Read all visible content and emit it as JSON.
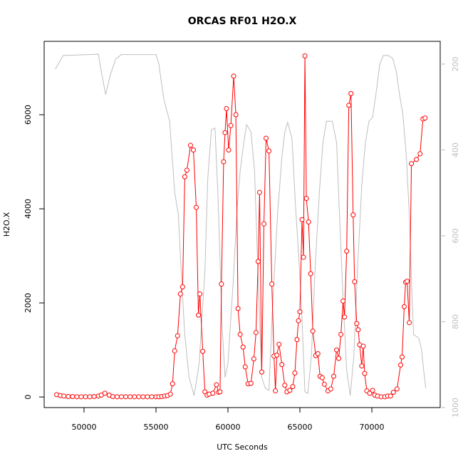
{
  "chart_data": {
    "type": "line",
    "title": "ORCAS RF01 H2O.X",
    "xlabel": "UTC Seconds",
    "ylabel": "H2O.X",
    "xlim": [
      47230,
      74750
    ],
    "xticks": [
      50000,
      55000,
      60000,
      65000,
      70000
    ],
    "ylim": [
      -225,
      7560
    ],
    "yticks": [
      0,
      2000,
      4000,
      6000
    ],
    "y2lim": [
      1000,
      147
    ],
    "y2ticks": [
      200,
      400,
      600,
      800,
      1000
    ],
    "series": [
      {
        "color": "#bebebe",
        "axis": "y2",
        "marker": "none",
        "x": [
          48000,
          48550,
          51000,
          51200,
          51500,
          51830,
          52200,
          52600,
          55000,
          55200,
          55550,
          55950,
          56300,
          56550,
          56800,
          57000,
          57300,
          57650,
          58000,
          58400,
          58600,
          58850,
          59100,
          59300,
          59600,
          59800,
          60000,
          60350,
          60650,
          60850,
          61100,
          61300,
          61600,
          61850,
          62100,
          62350,
          62600,
          62850,
          63100,
          63450,
          63750,
          63950,
          64150,
          64450,
          64700,
          64950,
          65150,
          65350,
          65550,
          65800,
          66050,
          66350,
          66600,
          66850,
          67250,
          67550,
          67750,
          68000,
          68250,
          68500,
          68750,
          69000,
          69300,
          69550,
          69800,
          70050,
          70300,
          70550,
          70800,
          71150,
          71450,
          71700,
          71900,
          72150,
          72400,
          72600,
          72800,
          72900,
          73250,
          73450,
          73600,
          73750
        ],
        "values": [
          212,
          180,
          177,
          217,
          271,
          225,
          188,
          178,
          178,
          200,
          283,
          333,
          499,
          549,
          715,
          830,
          930,
          972,
          897,
          681,
          466,
          353,
          349,
          499,
          814,
          930,
          897,
          715,
          532,
          449,
          383,
          341,
          358,
          449,
          698,
          930,
          955,
          960,
          765,
          549,
          416,
          358,
          336,
          374,
          532,
          665,
          797,
          963,
          967,
          880,
          681,
          499,
          383,
          333,
          333,
          383,
          549,
          748,
          913,
          972,
          880,
          681,
          482,
          383,
          333,
          324,
          266,
          200,
          180,
          180,
          187,
          217,
          266,
          316,
          416,
          549,
          748,
          830,
          838,
          864,
          913,
          955
        ]
      },
      {
        "color": "#ff0000",
        "marker": "circle",
        "x": [
          48100,
          48350,
          48600,
          48900,
          49200,
          49500,
          49800,
          50100,
          50400,
          50700,
          51000,
          51200,
          51450,
          51750,
          52000,
          52300,
          52600,
          52900,
          53200,
          53500,
          53800,
          54100,
          54400,
          54700,
          55000,
          55200,
          55400,
          55600,
          55800,
          56000,
          56150,
          56300,
          56500,
          56700,
          56850,
          57000,
          57150,
          57400,
          57600,
          57800,
          57950,
          58050,
          58250,
          58400,
          58550,
          58700,
          58950,
          59200,
          59350,
          59450,
          59550,
          59700,
          59800,
          59900,
          60050,
          60200,
          60400,
          60550,
          60700,
          60850,
          61050,
          61200,
          61400,
          61600,
          61800,
          61950,
          62100,
          62200,
          62350,
          62500,
          62650,
          62850,
          63050,
          63200,
          63300,
          63400,
          63550,
          63750,
          63950,
          64100,
          64300,
          64500,
          64650,
          64800,
          64900,
          65000,
          65150,
          65250,
          65350,
          65450,
          65600,
          65750,
          65900,
          66100,
          66250,
          66400,
          66550,
          66700,
          66950,
          67150,
          67350,
          67550,
          67700,
          67850,
          68000,
          68100,
          68250,
          68400,
          68550,
          68700,
          68800,
          68950,
          69050,
          69150,
          69300,
          69400,
          69500,
          69650,
          69850,
          70050,
          70200,
          70400,
          70650,
          70900,
          71100,
          71300,
          71500,
          71750,
          72000,
          72100,
          72250,
          72350,
          72450,
          72600,
          72750,
          73100,
          73350,
          73550,
          73700
        ],
        "values": [
          50,
          30,
          20,
          10,
          10,
          5,
          5,
          5,
          5,
          10,
          20,
          40,
          80,
          40,
          10,
          5,
          5,
          5,
          5,
          5,
          5,
          5,
          5,
          5,
          5,
          5,
          10,
          20,
          30,
          60,
          280,
          980,
          1300,
          2190,
          2340,
          4680,
          4820,
          5350,
          5250,
          4030,
          1740,
          2190,
          970,
          110,
          40,
          60,
          80,
          260,
          100,
          110,
          2400,
          5000,
          5620,
          6130,
          5250,
          5770,
          6820,
          6000,
          1880,
          1330,
          1060,
          640,
          280,
          290,
          810,
          1370,
          2880,
          4350,
          530,
          3680,
          5500,
          5230,
          2400,
          870,
          130,
          890,
          1120,
          690,
          250,
          110,
          140,
          220,
          510,
          1220,
          1620,
          1810,
          3770,
          2970,
          7250,
          4220,
          3720,
          2620,
          1400,
          880,
          920,
          440,
          410,
          270,
          130,
          170,
          440,
          1000,
          820,
          1330,
          2040,
          1700,
          3100,
          6200,
          6450,
          3870,
          2450,
          1560,
          1430,
          1110,
          660,
          1080,
          500,
          130,
          80,
          140,
          40,
          20,
          5,
          5,
          20,
          20,
          100,
          170,
          680,
          850,
          1920,
          2440,
          2460,
          1580,
          4960,
          5050,
          5170,
          5910,
          5930
        ]
      }
    ]
  }
}
